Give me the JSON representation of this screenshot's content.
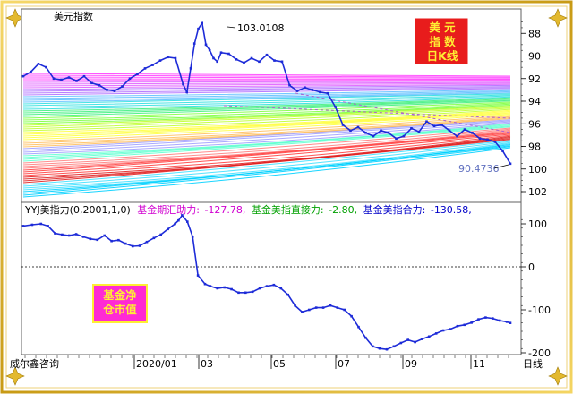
{
  "top_chart": {
    "title": "美元指数",
    "badge_text": "美  元\n指  数\n日K线",
    "annotation_high": "103.0108",
    "annotation_last": "90.4736",
    "y_ticks": [
      "102",
      "100",
      "98",
      "96",
      "94",
      "92",
      "90",
      "88"
    ]
  },
  "bottom_chart": {
    "legend": {
      "indicator": "YYJ美指力(0,2001,1,0)",
      "item1_label": "基金期汇助力:",
      "item1_value": "-127.78,",
      "item2_label": "基金美指直接力:",
      "item2_value": "-2.80,",
      "item3_label": "基金美指合力:",
      "item3_value": "-130.58,"
    },
    "badge_text": "基金净\n仓市值",
    "y_ticks": [
      "100",
      "0",
      "-100",
      "-200"
    ]
  },
  "x_axis": {
    "source": "威尔鑫咨询",
    "labels": [
      "2020/01",
      "03",
      "05",
      "07",
      "09",
      "11"
    ],
    "period": "日线"
  },
  "colors": {
    "price_line": "#1d2bd8",
    "force_line": "#1d2bd8",
    "badge_red": "#e81c1c",
    "badge_yellow": "#ffee33",
    "badge_magenta": "#ff2ad4",
    "legend_magenta": "#d000d0",
    "legend_green": "#00a000",
    "legend_blue": "#0000c8",
    "frame_gold": "#d4a81a"
  },
  "chart_data": [
    {
      "type": "line",
      "title": "美元指数",
      "series": [
        {
          "values": [
            [
              0,
              98.2
            ],
            [
              4,
              98.6
            ],
            [
              8,
              99.3
            ],
            [
              12,
              99.0
            ],
            [
              16,
              98.0
            ],
            [
              20,
              97.9
            ],
            [
              24,
              98.1
            ],
            [
              28,
              97.8
            ],
            [
              32,
              98.2
            ],
            [
              36,
              97.6
            ],
            [
              40,
              97.4
            ],
            [
              44,
              97.0
            ],
            [
              48,
              96.9
            ],
            [
              52,
              97.3
            ],
            [
              56,
              98.0
            ],
            [
              60,
              98.4
            ],
            [
              64,
              98.9
            ],
            [
              68,
              99.2
            ],
            [
              72,
              99.6
            ],
            [
              76,
              99.9
            ],
            [
              80,
              99.8
            ],
            [
              84,
              97.5
            ],
            [
              86,
              96.8
            ],
            [
              88,
              98.9
            ],
            [
              90,
              101.1
            ],
            [
              92,
              102.4
            ],
            [
              94,
              102.9
            ],
            [
              96,
              101.0
            ],
            [
              98,
              100.5
            ],
            [
              100,
              99.8
            ],
            [
              102,
              99.5
            ],
            [
              104,
              100.3
            ],
            [
              108,
              100.2
            ],
            [
              112,
              99.7
            ],
            [
              116,
              99.4
            ],
            [
              120,
              99.8
            ],
            [
              124,
              99.5
            ],
            [
              128,
              100.1
            ],
            [
              132,
              99.6
            ],
            [
              136,
              99.5
            ],
            [
              140,
              97.4
            ],
            [
              144,
              96.9
            ],
            [
              148,
              97.2
            ],
            [
              152,
              97.0
            ],
            [
              156,
              96.8
            ],
            [
              160,
              96.7
            ],
            [
              164,
              95.5
            ],
            [
              168,
              93.9
            ],
            [
              172,
              93.4
            ],
            [
              176,
              93.7
            ],
            [
              180,
              93.2
            ],
            [
              184,
              92.9
            ],
            [
              188,
              93.4
            ],
            [
              192,
              93.2
            ],
            [
              196,
              92.7
            ],
            [
              200,
              92.9
            ],
            [
              204,
              93.6
            ],
            [
              208,
              93.3
            ],
            [
              212,
              94.2
            ],
            [
              216,
              93.8
            ],
            [
              220,
              93.9
            ],
            [
              224,
              93.4
            ],
            [
              228,
              92.9
            ],
            [
              232,
              93.5
            ],
            [
              236,
              93.2
            ],
            [
              240,
              92.7
            ],
            [
              244,
              92.6
            ],
            [
              248,
              92.4
            ],
            [
              252,
              91.6
            ],
            [
              256,
              90.47
            ]
          ]
        }
      ],
      "ylim": [
        87.5,
        103.5
      ],
      "y_ticks": [
        88,
        90,
        92,
        94,
        96,
        98,
        100,
        102
      ],
      "grid": false
    },
    {
      "type": "line",
      "title": "YYJ美指力(0,2001,1,0)",
      "series": [
        {
          "name": "基金美指合力",
          "values": [
            [
              0,
              95
            ],
            [
              5,
              98
            ],
            [
              10,
              100
            ],
            [
              14,
              95
            ],
            [
              18,
              78
            ],
            [
              22,
              75
            ],
            [
              26,
              73
            ],
            [
              30,
              76
            ],
            [
              34,
              70
            ],
            [
              38,
              65
            ],
            [
              42,
              63
            ],
            [
              46,
              73
            ],
            [
              50,
              60
            ],
            [
              54,
              62
            ],
            [
              58,
              54
            ],
            [
              62,
              48
            ],
            [
              66,
              49
            ],
            [
              70,
              58
            ],
            [
              74,
              67
            ],
            [
              78,
              75
            ],
            [
              82,
              88
            ],
            [
              86,
              100
            ],
            [
              88,
              108
            ],
            [
              90,
              120
            ],
            [
              93,
              105
            ],
            [
              96,
              70
            ],
            [
              99,
              -20
            ],
            [
              103,
              -40
            ],
            [
              106,
              -45
            ],
            [
              110,
              -50
            ],
            [
              114,
              -48
            ],
            [
              118,
              -52
            ],
            [
              122,
              -60
            ],
            [
              126,
              -60
            ],
            [
              130,
              -58
            ],
            [
              134,
              -50
            ],
            [
              138,
              -45
            ],
            [
              142,
              -42
            ],
            [
              146,
              -50
            ],
            [
              150,
              -65
            ],
            [
              154,
              -90
            ],
            [
              158,
              -105
            ],
            [
              162,
              -100
            ],
            [
              166,
              -95
            ],
            [
              170,
              -95
            ],
            [
              174,
              -90
            ],
            [
              178,
              -95
            ],
            [
              182,
              -100
            ],
            [
              186,
              -115
            ],
            [
              190,
              -140
            ],
            [
              194,
              -165
            ],
            [
              198,
              -185
            ],
            [
              202,
              -190
            ],
            [
              206,
              -192
            ],
            [
              210,
              -185
            ],
            [
              214,
              -177
            ],
            [
              218,
              -170
            ],
            [
              222,
              -175
            ],
            [
              226,
              -168
            ],
            [
              230,
              -162
            ],
            [
              234,
              -155
            ],
            [
              238,
              -148
            ],
            [
              242,
              -145
            ],
            [
              246,
              -138
            ],
            [
              250,
              -135
            ],
            [
              254,
              -130
            ],
            [
              258,
              -122
            ],
            [
              262,
              -118
            ],
            [
              266,
              -120
            ],
            [
              270,
              -125
            ],
            [
              274,
              -128
            ],
            [
              276,
              -130.58
            ]
          ]
        }
      ],
      "ylim": [
        -195,
        125
      ],
      "y_ticks": [
        100,
        0,
        -100,
        -200
      ],
      "grid": false
    }
  ]
}
